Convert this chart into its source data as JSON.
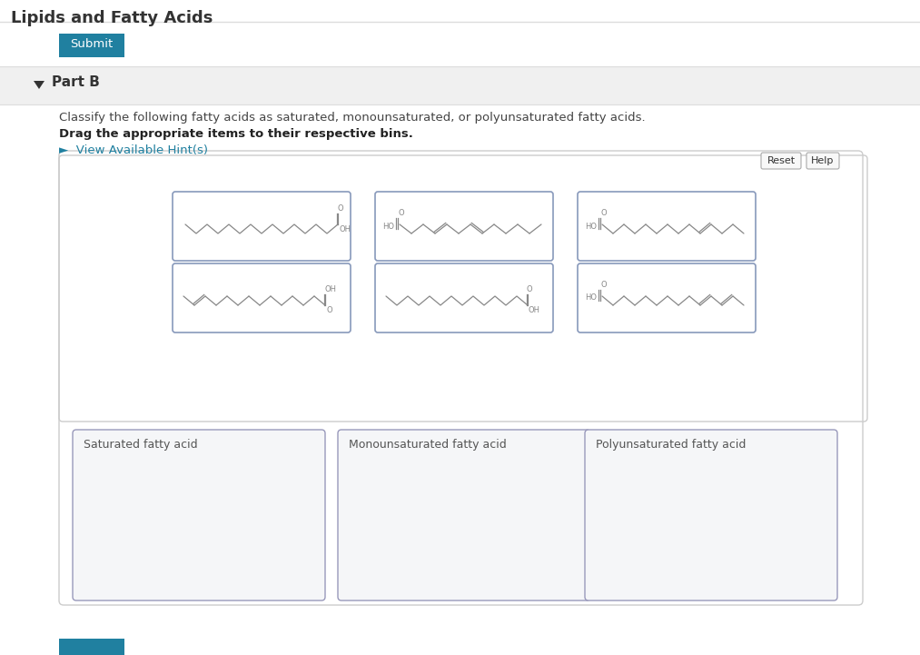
{
  "title": "Lipids and Fatty Acids",
  "bg_color": "#ffffff",
  "teal_color": "#2080a0",
  "submit_text": "Submit",
  "part_b_text": "Part B",
  "instruction1": "Classify the following fatty acids as saturated, monounsaturated, or polyunsaturated fatty acids.",
  "instruction2": "Drag the appropriate items to their respective bins.",
  "hint_text": "►  View Available Hint(s)",
  "reset_text": "Reset",
  "help_text": "Help",
  "bins": [
    "Saturated fatty acid",
    "Monounsaturated fatty acid",
    "Polyunsaturated fatty acid"
  ],
  "mol_color": "#888888",
  "card_border": "#8899bb",
  "bin_border": "#9999bb",
  "bin_bg": "#f5f6f8",
  "section_bg": "#f0f0f0",
  "outer_border": "#cccccc"
}
